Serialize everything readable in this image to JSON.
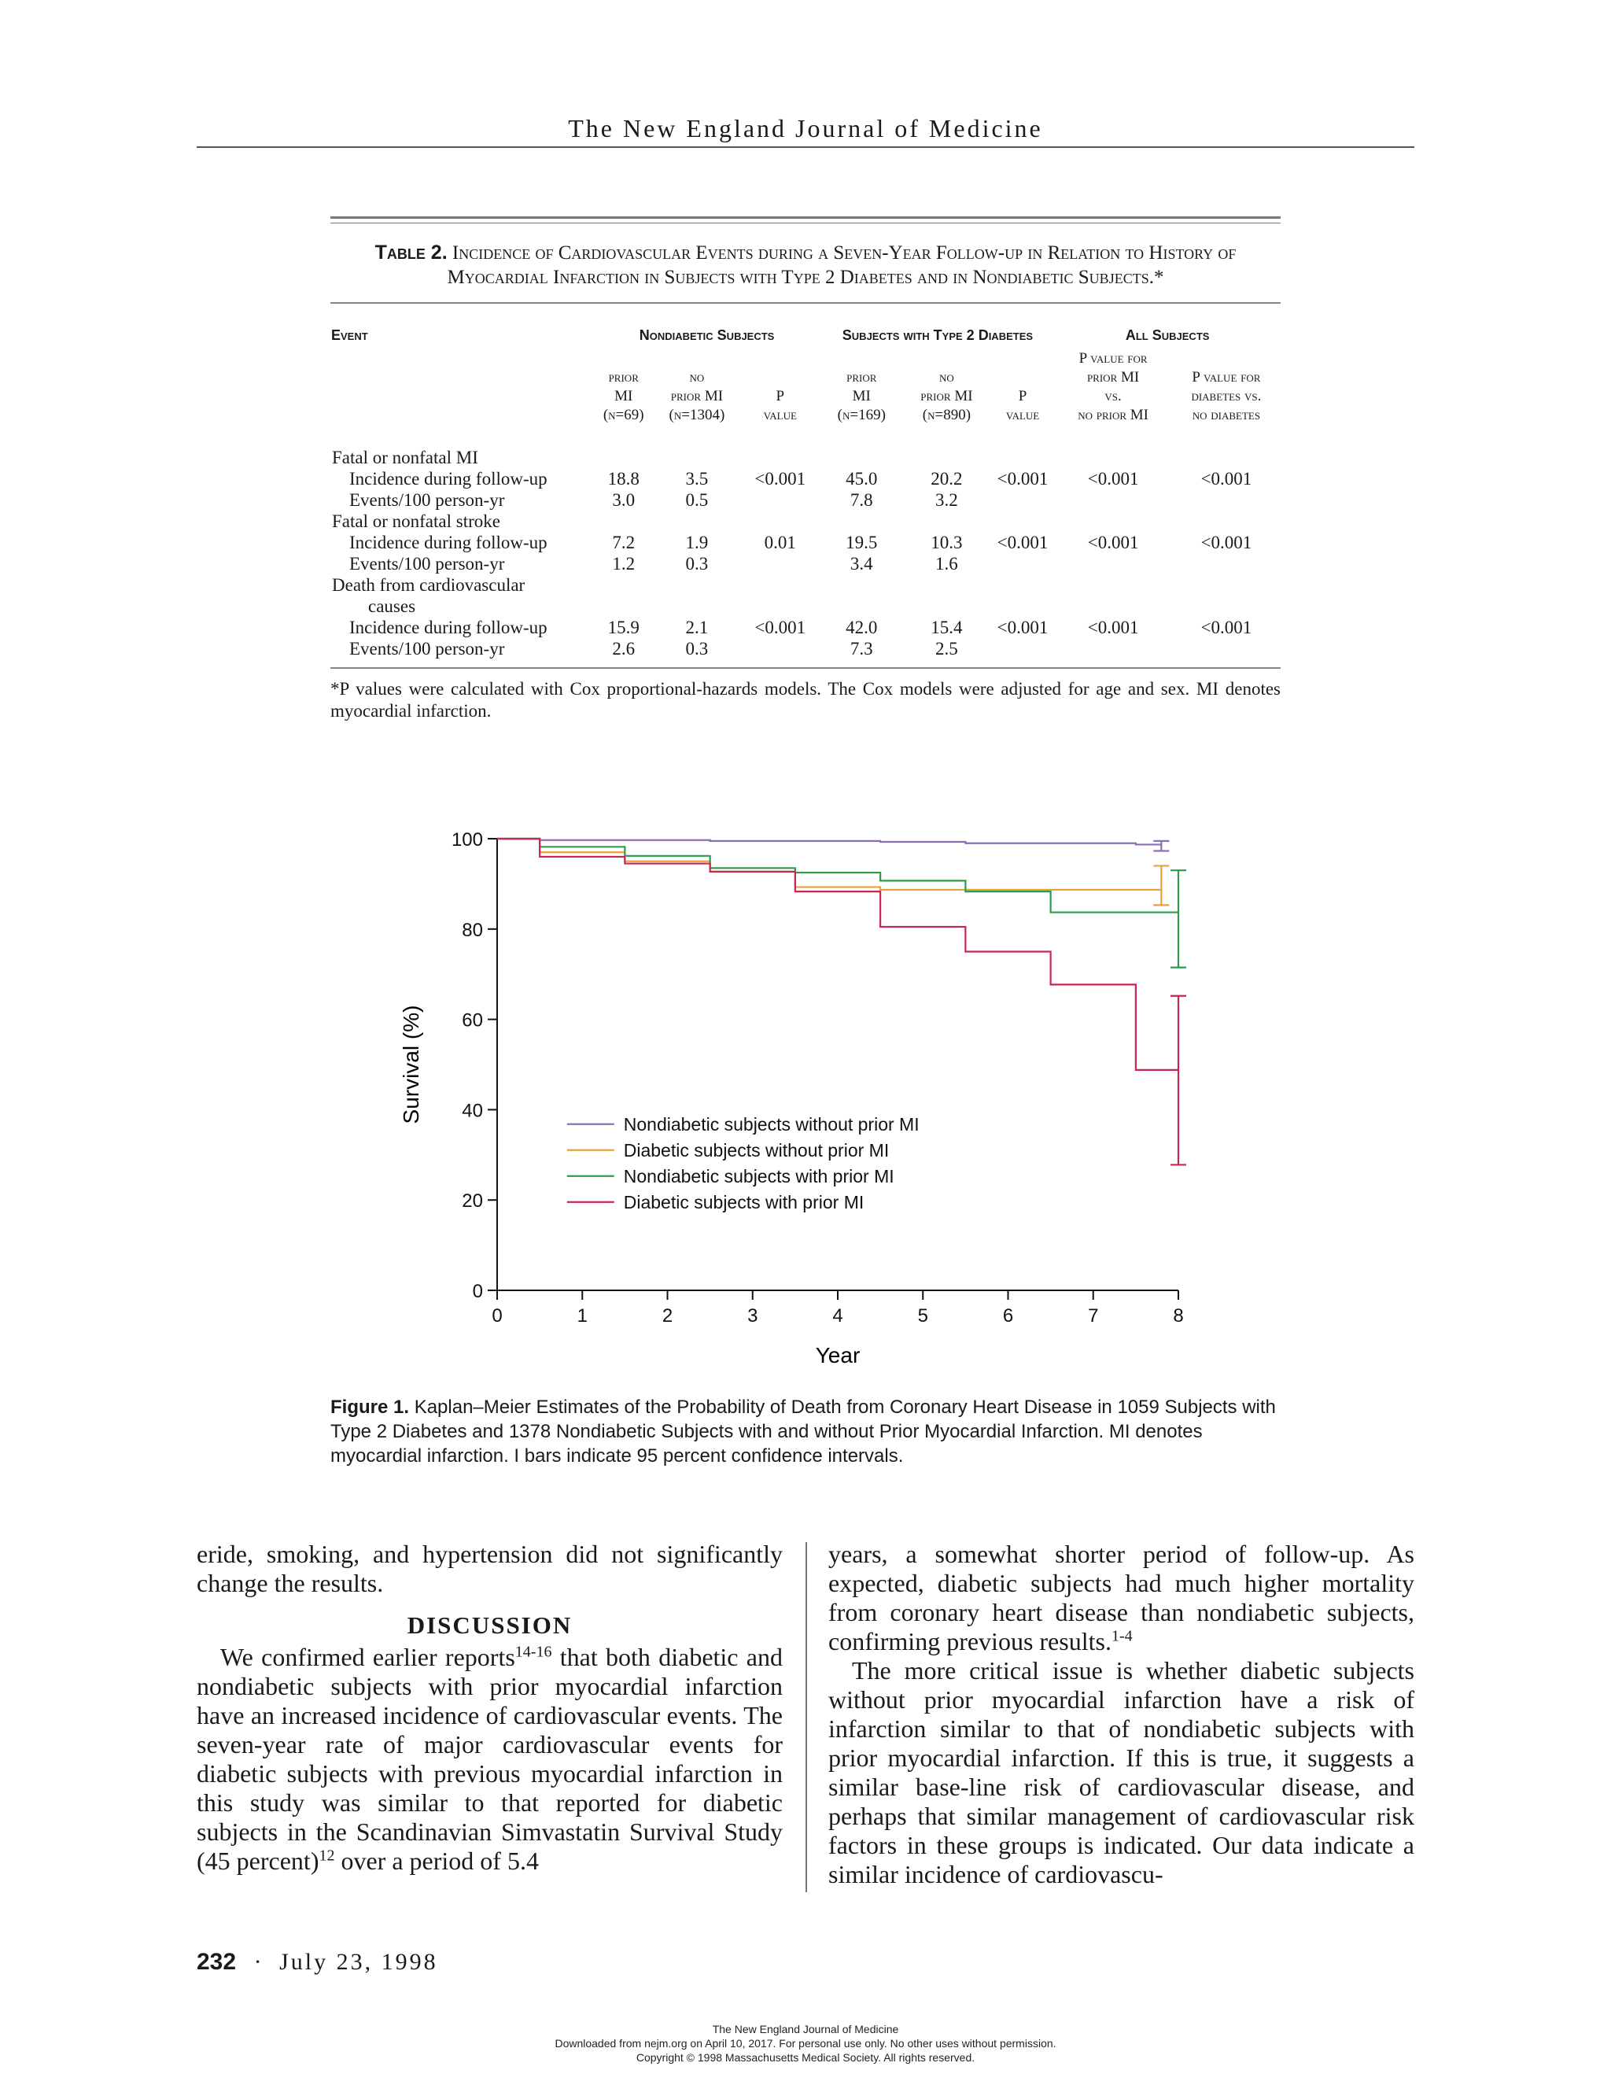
{
  "running_head": "The New England Journal of Medicine",
  "table": {
    "label": "Table 2.",
    "title": "Incidence of Cardiovascular Events during a Seven-Year Follow-up in Relation to History of Myocardial Infarction in Subjects with Type 2 Diabetes and in Nondiabetic Subjects.*",
    "headers": {
      "event": "Event",
      "nondiabetic": "Nondiabetic Subjects",
      "diabetic": "Subjects with Type 2 Diabetes",
      "all": "All Subjects"
    },
    "subheaders": [
      [
        "prior",
        "MI",
        "(n=69)"
      ],
      [
        "no",
        "prior MI",
        "(n=1304)"
      ],
      [
        "",
        "P",
        "value"
      ],
      [
        "prior",
        "MI",
        "(n=169)"
      ],
      [
        "no",
        "prior MI",
        "(n=890)"
      ],
      [
        "",
        "P",
        "value"
      ],
      [
        "P value for",
        "prior MI",
        "vs.",
        "no prior MI"
      ],
      [
        "P value for",
        "diabetes vs.",
        "no diabetes"
      ]
    ],
    "rows": [
      {
        "label": "Fatal or nonfatal MI",
        "indent": 0,
        "values": [
          "",
          "",
          "",
          "",
          "",
          "",
          "",
          ""
        ]
      },
      {
        "label": "Incidence during follow-up",
        "indent": 1,
        "values": [
          "18.8",
          "3.5",
          "<0.001",
          "45.0",
          "20.2",
          "<0.001",
          "<0.001",
          "<0.001"
        ]
      },
      {
        "label": "Events/100 person-yr",
        "indent": 1,
        "values": [
          "3.0",
          "0.5",
          "",
          "7.8",
          "3.2",
          "",
          "",
          ""
        ]
      },
      {
        "label": "Fatal or nonfatal stroke",
        "indent": 0,
        "values": [
          "",
          "",
          "",
          "",
          "",
          "",
          "",
          ""
        ]
      },
      {
        "label": "Incidence during follow-up",
        "indent": 1,
        "values": [
          "7.2",
          "1.9",
          "0.01",
          "19.5",
          "10.3",
          "<0.001",
          "<0.001",
          "<0.001"
        ]
      },
      {
        "label": "Events/100 person-yr",
        "indent": 1,
        "values": [
          "1.2",
          "0.3",
          "",
          "3.4",
          "1.6",
          "",
          "",
          ""
        ]
      },
      {
        "label": "Death from cardiovascular",
        "indent": 0,
        "values": [
          "",
          "",
          "",
          "",
          "",
          "",
          "",
          ""
        ]
      },
      {
        "label": "causes",
        "indent": 2,
        "values": [
          "",
          "",
          "",
          "",
          "",
          "",
          "",
          ""
        ]
      },
      {
        "label": "Incidence during follow-up",
        "indent": 1,
        "values": [
          "15.9",
          "2.1",
          "<0.001",
          "42.0",
          "15.4",
          "<0.001",
          "<0.001",
          "<0.001"
        ]
      },
      {
        "label": "Events/100 person-yr",
        "indent": 1,
        "values": [
          "2.6",
          "0.3",
          "",
          "7.3",
          "2.5",
          "",
          "",
          ""
        ]
      }
    ],
    "footnote": "*P values were calculated with Cox proportional-hazards models. The Cox models were adjusted for age and sex. MI denotes myocardial infarction."
  },
  "chart_data": {
    "type": "line",
    "title": "",
    "xlabel": "Year",
    "ylabel": "Survival (%)",
    "xlim": [
      0,
      8
    ],
    "ylim": [
      0,
      100
    ],
    "xticks": [
      0,
      1,
      2,
      3,
      4,
      5,
      6,
      7,
      8
    ],
    "yticks": [
      0,
      20,
      40,
      60,
      80,
      100
    ],
    "grid": false,
    "legend_position": "center-left",
    "step": true,
    "series": [
      {
        "name": "Nondiabetic subjects without prior MI",
        "color": "#8a6fb5",
        "x": [
          0,
          0.5,
          2.5,
          4.5,
          5.5,
          7.5,
          7.8
        ],
        "y": [
          100,
          99.7,
          99.5,
          99.3,
          99.0,
          98.7,
          98.2
        ],
        "ci": {
          "x": 7.8,
          "low": 97.3,
          "high": 99.5
        }
      },
      {
        "name": "Diabetic subjects without prior MI",
        "color": "#e8a13a",
        "x": [
          0,
          0.5,
          1.5,
          2.5,
          3.5,
          4.5,
          5.5,
          7.5,
          7.8
        ],
        "y": [
          100,
          97.0,
          95.0,
          92.7,
          89.3,
          88.7,
          88.7,
          88.7,
          88.7
        ],
        "ci": {
          "x": 7.8,
          "low": 85.3,
          "high": 94.0
        }
      },
      {
        "name": "Nondiabetic subjects with prior MI",
        "color": "#2e9a4e",
        "x": [
          0,
          0.5,
          1.5,
          2.5,
          3.5,
          4.5,
          5.5,
          6.5,
          8
        ],
        "y": [
          100,
          98.2,
          96.2,
          93.5,
          92.5,
          90.7,
          88.3,
          83.7,
          83.7
        ],
        "ci": {
          "x": 8,
          "low": 71.5,
          "high": 93.0
        }
      },
      {
        "name": "Diabetic subjects with prior MI",
        "color": "#c8274f",
        "x": [
          0,
          0.5,
          1.5,
          2.5,
          3.5,
          4.5,
          5.5,
          6.5,
          7.5,
          8
        ],
        "y": [
          100,
          96.0,
          94.5,
          92.7,
          88.3,
          80.5,
          75.0,
          67.7,
          48.8,
          48.8
        ],
        "ci": {
          "x": 8,
          "low": 27.8,
          "high": 65.2
        }
      }
    ]
  },
  "figure": {
    "label": "Figure 1.",
    "caption": "Kaplan–Meier Estimates of the Probability of Death from Coronary Heart Disease in 1059 Subjects with Type 2 Diabetes and 1378 Nondiabetic Subjects with and without Prior Myocardial Infarction. MI denotes myocardial infarction. I bars indicate 95 percent confidence intervals."
  },
  "body": {
    "left_p1": "eride, smoking, and hypertension did not significantly change the results.",
    "discussion_heading": "DISCUSSION",
    "left_p2a": "We confirmed earlier reports",
    "left_p2_sup1": "14-16",
    "left_p2b": " that both diabetic and nondiabetic subjects with prior myocardial infarction have an increased incidence of cardiovascular events. The seven-year rate of major cardiovascular events for diabetic subjects with previous myocardial infarction in this study was similar to that reported for diabetic subjects in the Scandinavian Simvastatin Survival Study (45 percent)",
    "left_p2_sup2": "12",
    "left_p2c": " over a period of 5.4",
    "right_p1a": "years, a somewhat shorter period of follow-up. As expected, diabetic subjects had much higher mortality from coronary heart disease than nondiabetic subjects, confirming previous results.",
    "right_p1_sup": "1-4",
    "right_p2": "The more critical issue is whether diabetic subjects without prior myocardial infarction have a risk of infarction similar to that of nondiabetic subjects with prior myocardial infarction. If this is true, it suggests a similar base-line risk of cardiovascular disease, and perhaps that similar management of cardiovascular risk factors in these groups is indicated. Our data indicate a similar incidence of cardiovascu-"
  },
  "footer": {
    "page_number": "232",
    "separator": "·",
    "date": "July 23, 1998",
    "watermark_line1": "The New England Journal of Medicine",
    "watermark_line2": "Downloaded from nejm.org on April 10, 2017. For personal use only. No other uses without permission.",
    "watermark_line3": "Copyright © 1998 Massachusetts Medical Society. All rights reserved."
  }
}
